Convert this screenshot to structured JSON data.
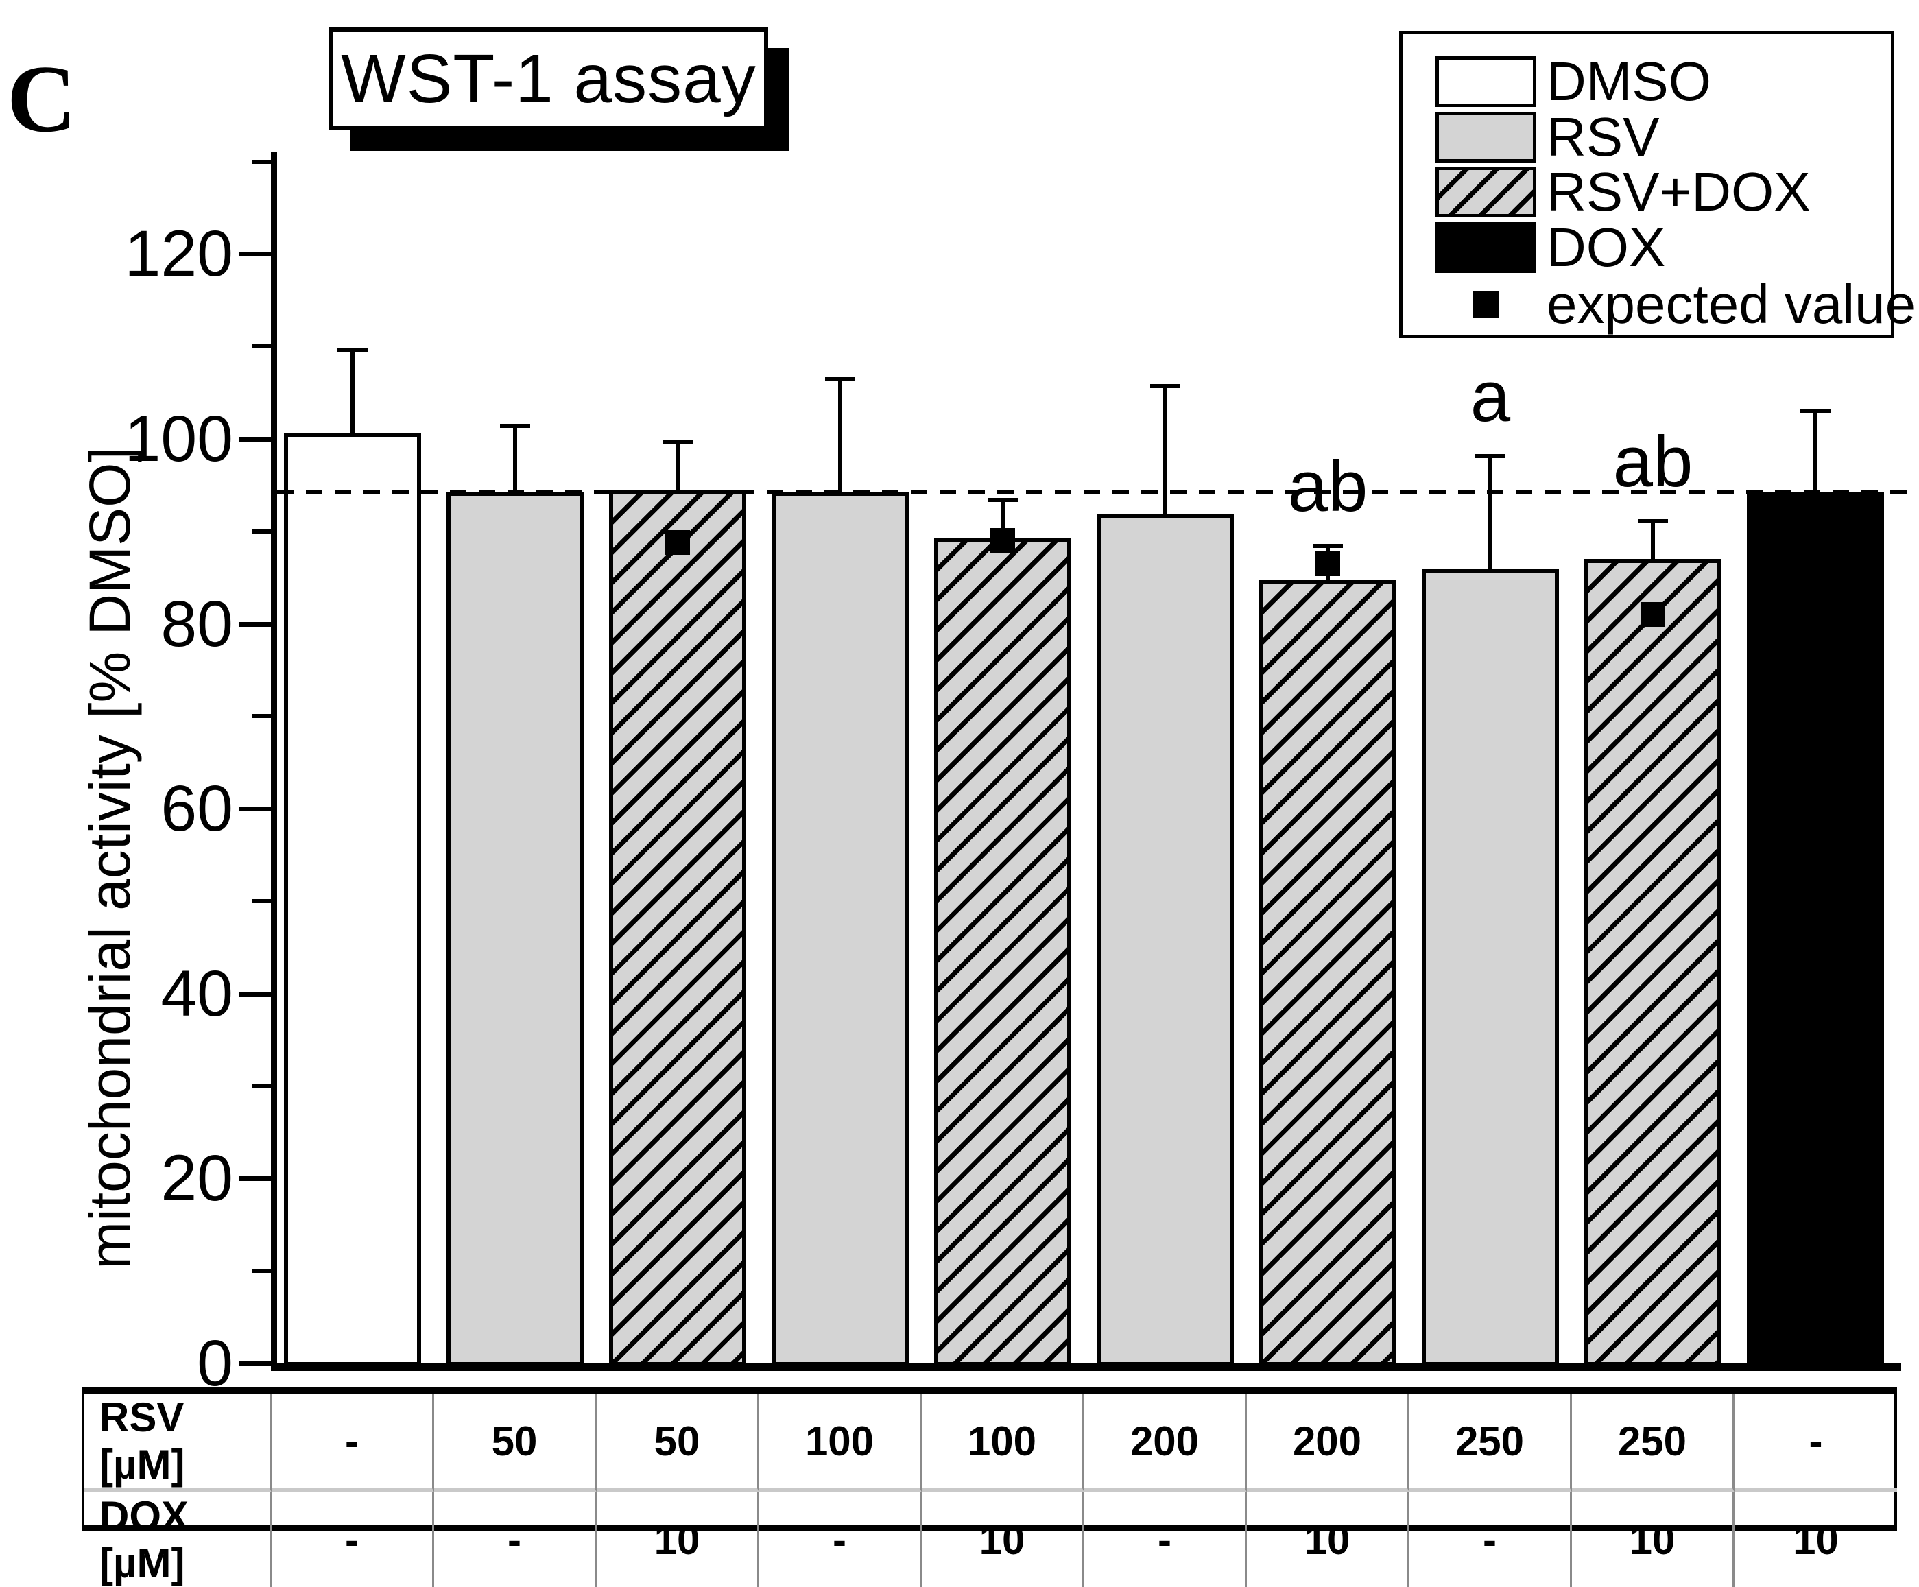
{
  "panel_label": "C",
  "title": "WST-1 assay",
  "legend": {
    "items": [
      {
        "label": "DMSO",
        "swatch": "white"
      },
      {
        "label": "RSV",
        "swatch": "gray"
      },
      {
        "label": "RSV+DOX",
        "swatch": "hatched"
      },
      {
        "label": "DOX",
        "swatch": "black"
      },
      {
        "label": "expected value",
        "swatch": "square-marker"
      }
    ]
  },
  "colors": {
    "bar_gray": "#d4d4d4",
    "black": "#000000",
    "white": "#ffffff"
  },
  "table": {
    "row_headers": [
      "RSV [µM]",
      "DOX [µM]"
    ]
  },
  "chart_data": {
    "type": "bar",
    "title": "WST-1 assay",
    "ylabel": "mitochondrial activity [% DMSO]",
    "ylim": [
      0,
      131
    ],
    "yticks_major": [
      0,
      20,
      40,
      60,
      80,
      100,
      120
    ],
    "ytick_labels": [
      "0",
      "20",
      "40",
      "60",
      "80",
      "100",
      "120"
    ],
    "yticks_minor": [
      10,
      30,
      50,
      70,
      90,
      110,
      130
    ],
    "reference_line": 94.3,
    "grid": false,
    "legend_position": "top-right",
    "bars": [
      {
        "group": "DMSO",
        "fill": "white",
        "rsv": "-",
        "dox": "-",
        "value": 100.7,
        "err_up": 9.0,
        "expected": null,
        "sig": ""
      },
      {
        "group": "RSV",
        "fill": "gray",
        "rsv": "50",
        "dox": "-",
        "value": 94.3,
        "err_up": 7.2,
        "expected": null,
        "sig": ""
      },
      {
        "group": "RSV+DOX",
        "fill": "hatched",
        "rsv": "50",
        "dox": "10",
        "value": 94.4,
        "err_up": 5.4,
        "expected": 88.8,
        "sig": ""
      },
      {
        "group": "RSV",
        "fill": "gray",
        "rsv": "100",
        "dox": "-",
        "value": 94.3,
        "err_up": 12.3,
        "expected": null,
        "sig": ""
      },
      {
        "group": "RSV+DOX",
        "fill": "hatched",
        "rsv": "100",
        "dox": "10",
        "value": 89.3,
        "err_up": 4.2,
        "expected": 89.0,
        "sig": ""
      },
      {
        "group": "RSV",
        "fill": "gray",
        "rsv": "200",
        "dox": "-",
        "value": 91.9,
        "err_up": 13.9,
        "expected": null,
        "sig": ""
      },
      {
        "group": "RSV+DOX",
        "fill": "hatched",
        "rsv": "200",
        "dox": "10",
        "value": 84.7,
        "err_up": 3.8,
        "expected": 86.5,
        "sig": "ab"
      },
      {
        "group": "RSV",
        "fill": "gray",
        "rsv": "250",
        "dox": "-",
        "value": 85.9,
        "err_up": 12.3,
        "expected": null,
        "sig": "a"
      },
      {
        "group": "RSV+DOX",
        "fill": "hatched",
        "rsv": "250",
        "dox": "10",
        "value": 87.0,
        "err_up": 4.2,
        "expected": 81.0,
        "sig": "ab"
      },
      {
        "group": "DOX",
        "fill": "black",
        "rsv": "-",
        "dox": "10",
        "value": 94.3,
        "err_up": 8.8,
        "expected": null,
        "sig": ""
      }
    ]
  }
}
